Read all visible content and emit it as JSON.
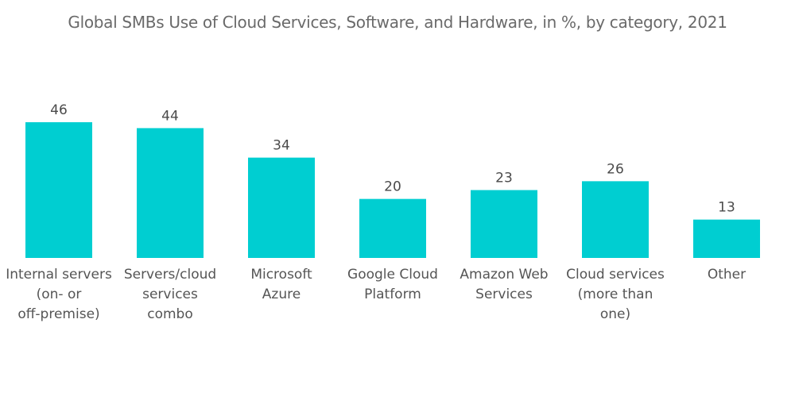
{
  "chart_data": {
    "type": "bar",
    "title": "Global SMBs Use of Cloud Services, Software, and Hardware, in %,  by category, 2021",
    "xlabel": "",
    "ylabel": "",
    "ylim": [
      0,
      46
    ],
    "grid": false,
    "legend": "none",
    "bar_color": "#00ced1",
    "categories": [
      [
        "Internal servers",
        "(on- or",
        "off-premise)"
      ],
      [
        "Servers/cloud",
        "services",
        "combo"
      ],
      [
        "Microsoft",
        "Azure"
      ],
      [
        "Google Cloud",
        "Platform"
      ],
      [
        "Amazon Web",
        "Services"
      ],
      [
        "Cloud services",
        "(more than",
        "one)"
      ],
      [
        "Other"
      ]
    ],
    "values": [
      46,
      44,
      34,
      20,
      23,
      26,
      13
    ]
  }
}
